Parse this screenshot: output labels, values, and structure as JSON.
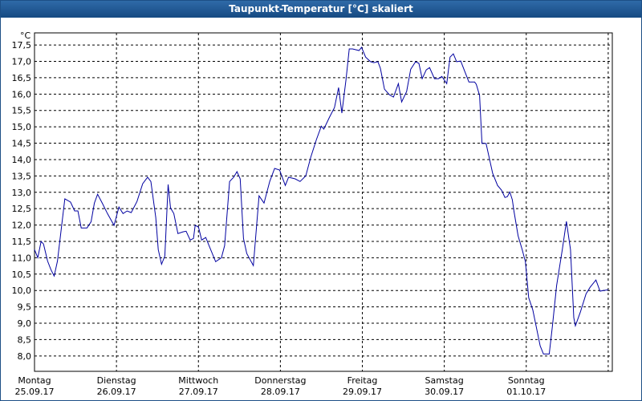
{
  "chart_data": {
    "type": "line",
    "title": "Taupunkt-Temperatur [°C] skaliert",
    "y_unit": "°C",
    "xlim": [
      0,
      7.05
    ],
    "ylim": [
      7.53,
      17.87
    ],
    "grid": true,
    "xticks": [
      {
        "value": 0,
        "label": "Montag",
        "date": "25.09.17"
      },
      {
        "value": 1,
        "label": "Dienstag",
        "date": "26.09.17"
      },
      {
        "value": 2,
        "label": "Mittwoch",
        "date": "27.09.17"
      },
      {
        "value": 3,
        "label": "Donnerstag",
        "date": "28.09.17"
      },
      {
        "value": 4,
        "label": "Freitag",
        "date": "29.09.17"
      },
      {
        "value": 5,
        "label": "Samstag",
        "date": "30.09.17"
      },
      {
        "value": 6,
        "label": "Sonntag",
        "date": "01.10.17"
      },
      {
        "value": 7,
        "label": null,
        "date": null
      }
    ],
    "yticks": [
      {
        "value": 8,
        "label": "8,0"
      },
      {
        "value": 8.5,
        "label": "8,5"
      },
      {
        "value": 9,
        "label": "9,0"
      },
      {
        "value": 9.5,
        "label": "9,5"
      },
      {
        "value": 10,
        "label": "10,0"
      },
      {
        "value": 10.5,
        "label": "10,5"
      },
      {
        "value": 11,
        "label": "11,0"
      },
      {
        "value": 11.5,
        "label": "11,5"
      },
      {
        "value": 12,
        "label": "12,0"
      },
      {
        "value": 12.5,
        "label": "12,5"
      },
      {
        "value": 13,
        "label": "13,0"
      },
      {
        "value": 13.5,
        "label": "13,5"
      },
      {
        "value": 14,
        "label": "14,0"
      },
      {
        "value": 14.5,
        "label": "14,5"
      },
      {
        "value": 15,
        "label": "15,0"
      },
      {
        "value": 15.5,
        "label": "15,5"
      },
      {
        "value": 16,
        "label": "16,0"
      },
      {
        "value": 16.5,
        "label": "16,5"
      },
      {
        "value": 17,
        "label": "17,0"
      },
      {
        "value": 17.5,
        "label": "17,5"
      }
    ],
    "series": [
      {
        "color": "#0000a0",
        "x": [
          0,
          0.04,
          0.08,
          0.11,
          0.16,
          0.2,
          0.24,
          0.28,
          0.32,
          0.37,
          0.44,
          0.49,
          0.53,
          0.57,
          0.64,
          0.69,
          0.73,
          0.77,
          0.83,
          0.89,
          0.97,
          1.03,
          1.08,
          1.13,
          1.18,
          1.25,
          1.32,
          1.38,
          1.42,
          1.48,
          1.51,
          1.55,
          1.59,
          1.63,
          1.66,
          1.7,
          1.75,
          1.81,
          1.85,
          1.9,
          1.94,
          1.96,
          2.0,
          2.04,
          2.09,
          2.13,
          2.21,
          2.28,
          2.32,
          2.38,
          2.43,
          2.47,
          2.51,
          2.55,
          2.59,
          2.67,
          2.74,
          2.8,
          2.87,
          2.93,
          2.99,
          3.06,
          3.1,
          3.18,
          3.24,
          3.31,
          3.37,
          3.44,
          3.5,
          3.53,
          3.6,
          3.66,
          3.71,
          3.75,
          3.8,
          3.84,
          3.88,
          3.96,
          3.99,
          4.04,
          4.1,
          4.14,
          4.19,
          4.22,
          4.27,
          4.33,
          4.38,
          4.44,
          4.48,
          4.54,
          4.59,
          4.65,
          4.69,
          4.73,
          4.78,
          4.82,
          4.88,
          4.93,
          4.97,
          5.03,
          5.07,
          5.11,
          5.15,
          5.2,
          5.25,
          5.3,
          5.37,
          5.39,
          5.43,
          5.46,
          5.51,
          5.59,
          5.65,
          5.7,
          5.74,
          5.77,
          5.8,
          5.83,
          5.85,
          5.9,
          5.95,
          5.99,
          6.03,
          6.08,
          6.13,
          6.17,
          6.21,
          6.28,
          6.32,
          6.37,
          6.44,
          6.49,
          6.54,
          6.58,
          6.6,
          6.66,
          6.73,
          6.78,
          6.85,
          6.9,
          6.94,
          7.0
        ],
        "values": [
          11.25,
          11.0,
          11.5,
          11.42,
          10.9,
          10.64,
          10.44,
          10.9,
          11.75,
          12.8,
          12.7,
          12.43,
          12.43,
          11.91,
          11.91,
          12.1,
          12.67,
          12.94,
          12.65,
          12.35,
          11.99,
          12.55,
          12.35,
          12.43,
          12.38,
          12.72,
          13.26,
          13.46,
          13.33,
          12.23,
          11.25,
          10.8,
          11.05,
          13.24,
          12.52,
          12.35,
          11.74,
          11.79,
          11.81,
          11.54,
          11.59,
          11.99,
          11.94,
          11.54,
          11.62,
          11.37,
          10.88,
          11.0,
          11.37,
          13.33,
          13.46,
          13.63,
          13.41,
          11.59,
          11.13,
          10.76,
          12.89,
          12.67,
          13.33,
          13.73,
          13.68,
          13.21,
          13.46,
          13.41,
          13.33,
          13.5,
          14.07,
          14.61,
          15.02,
          14.93,
          15.3,
          15.59,
          16.2,
          15.42,
          16.43,
          17.38,
          17.38,
          17.33,
          17.43,
          17.13,
          16.99,
          16.96,
          16.99,
          16.79,
          16.15,
          15.98,
          15.91,
          16.32,
          15.76,
          16.08,
          16.76,
          16.99,
          16.94,
          16.47,
          16.74,
          16.81,
          16.47,
          16.47,
          16.54,
          16.32,
          17.13,
          17.23,
          16.99,
          17.01,
          16.69,
          16.37,
          16.37,
          16.3,
          15.96,
          14.49,
          14.49,
          13.58,
          13.21,
          13.06,
          12.84,
          12.87,
          13.01,
          12.77,
          12.43,
          11.67,
          11.25,
          10.88,
          9.78,
          9.41,
          8.8,
          8.31,
          8.06,
          8.06,
          8.92,
          10.15,
          11.25,
          12.11,
          11.25,
          9.17,
          8.92,
          9.34,
          9.9,
          10.1,
          10.32,
          9.98,
          10.0,
          10.02
        ]
      }
    ]
  }
}
